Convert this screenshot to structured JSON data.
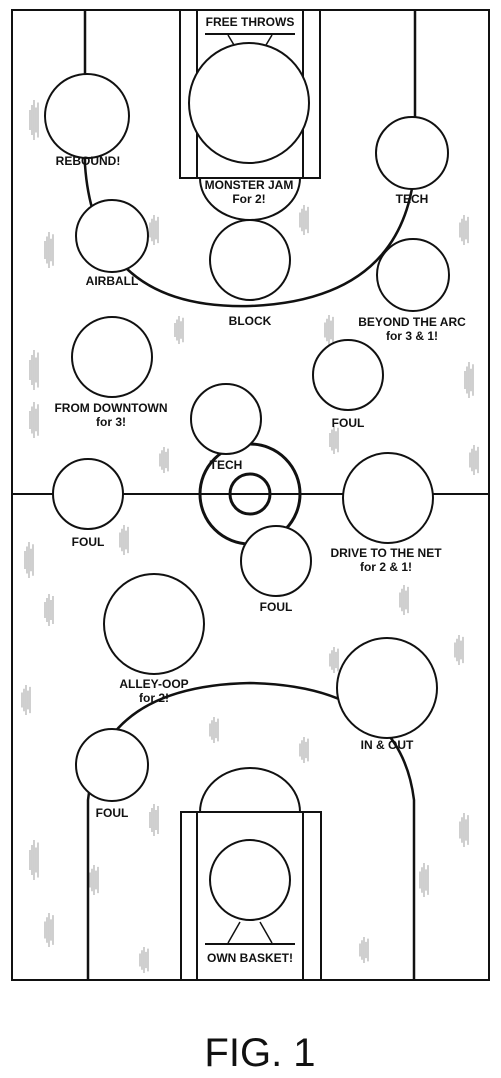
{
  "figure_label": "FIG. 1",
  "spaces": [
    {
      "id": "free-throws",
      "lines": [
        "FREE THROWS"
      ]
    },
    {
      "id": "rebound",
      "lines": [
        "REBOUND!"
      ]
    },
    {
      "id": "monster-jam",
      "lines": [
        "MONSTER JAM",
        "For 2!"
      ]
    },
    {
      "id": "tech-top",
      "lines": [
        "TECH"
      ]
    },
    {
      "id": "airball",
      "lines": [
        "AIRBALL"
      ]
    },
    {
      "id": "block",
      "lines": [
        "BLOCK"
      ]
    },
    {
      "id": "beyond-the-arc",
      "lines": [
        "BEYOND THE ARC",
        "for 3 & 1!"
      ]
    },
    {
      "id": "from-downtown",
      "lines": [
        "FROM DOWNTOWN",
        "for 3!"
      ]
    },
    {
      "id": "foul-upper-right",
      "lines": [
        "FOUL"
      ]
    },
    {
      "id": "tech-center",
      "lines": [
        "TECH"
      ]
    },
    {
      "id": "foul-left",
      "lines": [
        "FOUL"
      ]
    },
    {
      "id": "drive-to-the-net",
      "lines": [
        "DRIVE TO THE NET",
        "for 2 & 1!"
      ]
    },
    {
      "id": "foul-center",
      "lines": [
        "FOUL"
      ]
    },
    {
      "id": "alley-oop",
      "lines": [
        "ALLEY-OOP",
        "for 2!"
      ]
    },
    {
      "id": "in-and-out",
      "lines": [
        "IN & OUT"
      ]
    },
    {
      "id": "foul-lower-left",
      "lines": [
        "FOUL"
      ]
    },
    {
      "id": "own-basket",
      "lines": [
        "OWN BASKET!"
      ]
    }
  ]
}
